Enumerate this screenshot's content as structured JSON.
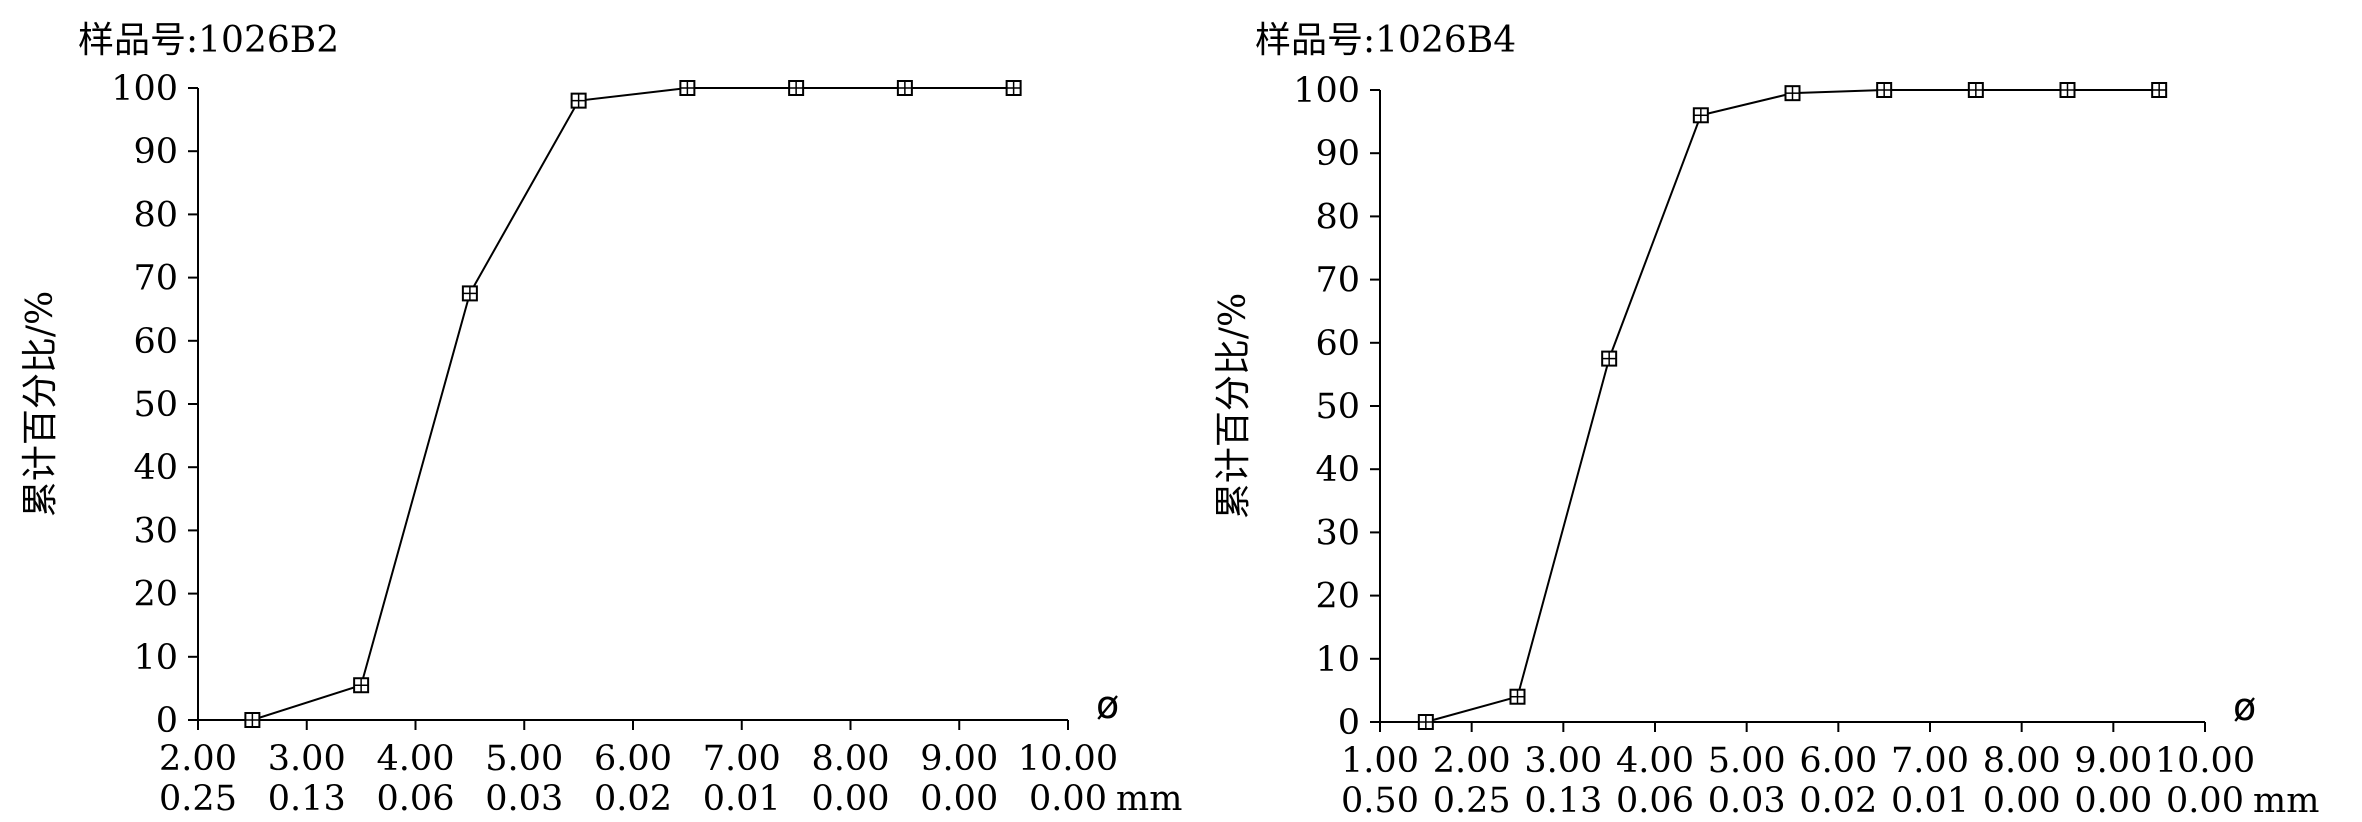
{
  "chart_data": [
    {
      "type": "line",
      "title": "样品号:1026B2",
      "ylabel": "累计百分比/%",
      "xlabel": "ø",
      "x_unit_label": "mm",
      "xlim": [
        2.0,
        10.0
      ],
      "ylim": [
        0,
        100
      ],
      "x_ticks": [
        "2.00",
        "3.00",
        "4.00",
        "5.00",
        "6.00",
        "7.00",
        "8.00",
        "9.00",
        "10.00"
      ],
      "x_ticks_mm": [
        "0.25",
        "0.13",
        "0.06",
        "0.03",
        "0.02",
        "0.01",
        "0.00",
        "0.00",
        "0.00"
      ],
      "y_ticks": [
        "0",
        "10",
        "20",
        "30",
        "40",
        "50",
        "60",
        "70",
        "80",
        "90",
        "100"
      ],
      "grid": false,
      "x": [
        2.5,
        3.5,
        4.5,
        5.5,
        6.5,
        7.5,
        8.5,
        9.5
      ],
      "y": [
        0,
        5.5,
        67.5,
        98,
        100,
        100,
        100,
        100
      ]
    },
    {
      "type": "line",
      "title": "样品号:1026B4",
      "ylabel": "累计百分比/%",
      "xlabel": "ø",
      "x_unit_label": "mm",
      "xlim": [
        1.0,
        10.0
      ],
      "ylim": [
        0,
        100
      ],
      "x_ticks": [
        "1.00",
        "2.00",
        "3.00",
        "4.00",
        "5.00",
        "6.00",
        "7.00",
        "8.00",
        "9.00",
        "10.00"
      ],
      "x_ticks_mm": [
        "0.50",
        "0.25",
        "0.13",
        "0.06",
        "0.03",
        "0.02",
        "0.01",
        "0.00",
        "0.00",
        "0.00"
      ],
      "y_ticks": [
        "0",
        "10",
        "20",
        "30",
        "40",
        "50",
        "60",
        "70",
        "80",
        "90",
        "100"
      ],
      "grid": false,
      "x": [
        1.5,
        2.5,
        3.5,
        4.5,
        5.5,
        6.5,
        7.5,
        8.5,
        9.5
      ],
      "y": [
        0,
        4,
        57.5,
        96,
        99.5,
        100,
        100,
        100,
        100
      ]
    }
  ]
}
